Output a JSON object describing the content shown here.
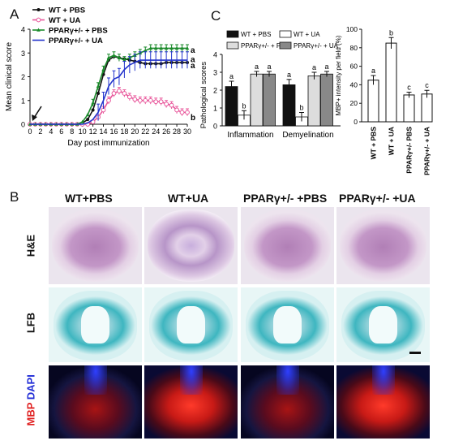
{
  "panels": {
    "a": "A",
    "b": "B",
    "c": "C"
  },
  "chart_data": [
    {
      "type": "line",
      "xlabel": "Day post immunization",
      "ylabel": "Mean clinical score",
      "xlim": [
        0,
        30
      ],
      "ylim": [
        0,
        4
      ],
      "xticks": [
        "0",
        "2",
        "4",
        "6",
        "8",
        "10",
        "12",
        "14",
        "16",
        "18",
        "20",
        "22",
        "24",
        "26",
        "28",
        "30"
      ],
      "yticks": [
        "0",
        "1",
        "2",
        "3",
        "4"
      ],
      "series": [
        {
          "name": "WT + PBS",
          "color": "#111111",
          "marker": "circle-filled",
          "x": [
            0,
            1,
            2,
            3,
            4,
            5,
            6,
            7,
            8,
            9,
            10,
            11,
            12,
            13,
            14,
            15,
            16,
            17,
            18,
            19,
            20,
            21,
            22,
            23,
            24,
            25,
            26,
            27,
            28,
            29,
            30
          ],
          "y": [
            0,
            0,
            0,
            0,
            0,
            0,
            0,
            0,
            0,
            0,
            0.05,
            0.2,
            0.6,
            1.3,
            2.1,
            2.7,
            2.85,
            2.8,
            2.75,
            2.7,
            2.65,
            2.6,
            2.55,
            2.55,
            2.55,
            2.55,
            2.6,
            2.6,
            2.6,
            2.6,
            2.6
          ]
        },
        {
          "name": "WT + UA",
          "color": "#e8559a",
          "marker": "circle-open",
          "x": [
            0,
            1,
            2,
            3,
            4,
            5,
            6,
            7,
            8,
            9,
            10,
            11,
            12,
            13,
            14,
            15,
            16,
            17,
            18,
            19,
            20,
            21,
            22,
            23,
            24,
            25,
            26,
            27,
            28,
            29,
            30
          ],
          "y": [
            0,
            0,
            0,
            0,
            0,
            0,
            0,
            0,
            0,
            0,
            0,
            0,
            0.1,
            0.3,
            0.6,
            1.0,
            1.3,
            1.4,
            1.3,
            1.15,
            1.05,
            1.0,
            1.0,
            1.0,
            0.95,
            0.95,
            0.85,
            0.8,
            0.6,
            0.5,
            0.5
          ]
        },
        {
          "name": "PPARγ+/- + PBS",
          "color": "#1a8a2a",
          "marker": "triangle",
          "x": [
            0,
            1,
            2,
            3,
            4,
            5,
            6,
            7,
            8,
            9,
            10,
            11,
            12,
            13,
            14,
            15,
            16,
            17,
            18,
            19,
            20,
            21,
            22,
            23,
            24,
            25,
            26,
            27,
            28,
            29,
            30
          ],
          "y": [
            0,
            0,
            0,
            0,
            0,
            0,
            0,
            0,
            0,
            0,
            0.1,
            0.4,
            0.9,
            1.6,
            2.3,
            2.8,
            2.9,
            2.8,
            2.7,
            2.8,
            2.9,
            3.0,
            3.1,
            3.2,
            3.2,
            3.2,
            3.2,
            3.2,
            3.2,
            3.2,
            3.2
          ]
        },
        {
          "name": "PPARγ+/- + UA",
          "color": "#2233cc",
          "marker": "line",
          "x": [
            0,
            1,
            2,
            3,
            4,
            5,
            6,
            7,
            8,
            9,
            10,
            11,
            12,
            13,
            14,
            15,
            16,
            17,
            18,
            19,
            20,
            21,
            22,
            23,
            24,
            25,
            26,
            27,
            28,
            29,
            30
          ],
          "y": [
            0,
            0,
            0,
            0,
            0,
            0,
            0,
            0,
            0,
            0,
            0,
            0.05,
            0.2,
            0.5,
            1.0,
            1.6,
            1.9,
            2.0,
            2.3,
            2.5,
            2.6,
            2.7,
            2.7,
            2.7,
            2.7,
            2.7,
            2.7,
            2.7,
            2.7,
            2.7,
            2.7
          ]
        }
      ],
      "end_labels": [
        "a",
        "a",
        "a",
        "b"
      ],
      "arrow_day": 0
    },
    {
      "type": "bar",
      "ylabel": "Pathological scores",
      "ylim": [
        0,
        4
      ],
      "yticks": [
        "0",
        "1",
        "2",
        "3",
        "4"
      ],
      "categories": [
        "Inflammation",
        "Demyelination"
      ],
      "series": [
        {
          "name": "WT + PBS",
          "color": "#111111",
          "values": [
            2.2,
            2.3
          ],
          "err": [
            0.3,
            0.3
          ],
          "letters": [
            "a",
            "a"
          ]
        },
        {
          "name": "WT + UA",
          "color": "#ffffff",
          "values": [
            0.6,
            0.5
          ],
          "err": [
            0.25,
            0.25
          ],
          "letters": [
            "b",
            "b"
          ]
        },
        {
          "name": "PPARγ+/- + PBS",
          "color": "#dddddd",
          "values": [
            2.9,
            2.8
          ],
          "err": [
            0.15,
            0.2
          ],
          "letters": [
            "a",
            "a"
          ]
        },
        {
          "name": "PPARγ+/- + UA",
          "color": "#888888",
          "values": [
            2.9,
            2.9
          ],
          "err": [
            0.15,
            0.15
          ],
          "letters": [
            "a",
            "a"
          ]
        }
      ]
    },
    {
      "type": "bar",
      "ylabel": "MBP+ intensity per field (%)",
      "ylim": [
        0,
        100
      ],
      "yticks": [
        "0",
        "20",
        "40",
        "60",
        "80",
        "100"
      ],
      "categories": [
        "WT + PBS",
        "WT + UA",
        "PPARγ+/- PBS",
        "PPARγ+/- + UA"
      ],
      "values": [
        45,
        85,
        29,
        30
      ],
      "err": [
        5,
        6,
        3,
        4
      ],
      "letters": [
        "a",
        "b",
        "c",
        "c"
      ]
    }
  ],
  "panel_b": {
    "columns": [
      "WT+PBS",
      "WT+UA",
      "PPARγ+/-  +PBS",
      "PPARγ+/-  +UA"
    ],
    "rows": [
      "H&E",
      "LFB",
      "MBP DAPI"
    ]
  }
}
